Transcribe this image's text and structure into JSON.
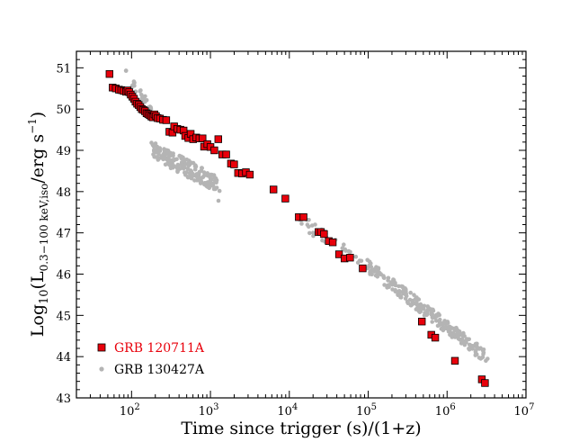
{
  "chart_data": {
    "type": "scatter",
    "xscale": "log",
    "xlabel": "Time since trigger (s)/(1+z)",
    "ylabel": {
      "prefix": "Log",
      "sub1": "10",
      "mid": "(L",
      "sub2": "0.3−100 keV,iso",
      "unit": "/erg s",
      "sup": "−1",
      "suffix": ")"
    },
    "xlim": [
      1.301,
      7
    ],
    "ylim": [
      43,
      51.4
    ],
    "x_ticks": [
      {
        "exp": 2,
        "base": "10",
        "power": "2"
      },
      {
        "exp": 3,
        "base": "10",
        "power": "3"
      },
      {
        "exp": 4,
        "base": "10",
        "power": "4"
      },
      {
        "exp": 5,
        "base": "10",
        "power": "5"
      },
      {
        "exp": 6,
        "base": "10",
        "power": "6"
      },
      {
        "exp": 7,
        "base": "10",
        "power": "7"
      }
    ],
    "y_ticks": [
      43,
      44,
      45,
      46,
      47,
      48,
      49,
      50,
      51
    ],
    "legend_position": "bottom-left",
    "series": [
      {
        "name": "GRB 120711A",
        "marker": "square",
        "color": "#e8000b",
        "edge": "#000000",
        "points": [
          [
            1.72,
            50.85
          ],
          [
            1.76,
            50.52
          ],
          [
            1.8,
            50.5
          ],
          [
            1.84,
            50.47
          ],
          [
            1.87,
            50.46
          ],
          [
            1.9,
            50.44
          ],
          [
            1.93,
            50.42
          ],
          [
            1.95,
            50.45
          ],
          [
            1.97,
            50.41
          ],
          [
            1.99,
            50.35
          ],
          [
            2.01,
            50.3
          ],
          [
            2.03,
            50.25
          ],
          [
            2.05,
            50.18
          ],
          [
            2.07,
            50.13
          ],
          [
            2.09,
            50.1
          ],
          [
            2.11,
            50.05
          ],
          [
            2.13,
            50.0
          ],
          [
            2.15,
            49.98
          ],
          [
            2.17,
            49.95
          ],
          [
            2.19,
            49.9
          ],
          [
            2.21,
            49.88
          ],
          [
            2.23,
            49.85
          ],
          [
            2.25,
            49.82
          ],
          [
            2.27,
            49.8
          ],
          [
            2.29,
            49.87
          ],
          [
            2.31,
            49.83
          ],
          [
            2.33,
            49.78
          ],
          [
            2.36,
            49.77
          ],
          [
            2.4,
            49.74
          ],
          [
            2.44,
            49.73
          ],
          [
            2.48,
            49.45
          ],
          [
            2.52,
            49.43
          ],
          [
            2.54,
            49.58
          ],
          [
            2.58,
            49.52
          ],
          [
            2.62,
            49.5
          ],
          [
            2.66,
            49.48
          ],
          [
            2.68,
            49.35
          ],
          [
            2.72,
            49.3
          ],
          [
            2.75,
            49.4
          ],
          [
            2.78,
            49.27
          ],
          [
            2.82,
            49.31
          ],
          [
            2.86,
            49.29
          ],
          [
            2.9,
            49.29
          ],
          [
            2.92,
            49.09
          ],
          [
            2.96,
            49.15
          ],
          [
            3.0,
            49.08
          ],
          [
            3.05,
            49.0
          ],
          [
            3.1,
            49.27
          ],
          [
            3.15,
            48.9
          ],
          [
            3.2,
            48.9
          ],
          [
            3.26,
            48.68
          ],
          [
            3.3,
            48.66
          ],
          [
            3.35,
            48.45
          ],
          [
            3.4,
            48.44
          ],
          [
            3.45,
            48.47
          ],
          [
            3.5,
            48.41
          ],
          [
            3.8,
            48.05
          ],
          [
            3.95,
            47.83
          ],
          [
            4.12,
            47.38
          ],
          [
            4.18,
            47.38
          ],
          [
            4.37,
            47.02
          ],
          [
            4.4,
            47.02
          ],
          [
            4.44,
            46.97
          ],
          [
            4.5,
            46.8
          ],
          [
            4.55,
            46.77
          ],
          [
            4.63,
            46.48
          ],
          [
            4.7,
            46.38
          ],
          [
            4.77,
            46.4
          ],
          [
            4.93,
            46.14
          ],
          [
            5.68,
            44.85
          ],
          [
            5.8,
            44.53
          ],
          [
            5.85,
            44.46
          ],
          [
            6.1,
            43.9
          ],
          [
            6.44,
            43.45
          ],
          [
            6.48,
            43.36
          ]
        ]
      },
      {
        "name": "GRB 130427A",
        "marker": "circle",
        "color": "#b4b4b4"
      }
    ]
  }
}
